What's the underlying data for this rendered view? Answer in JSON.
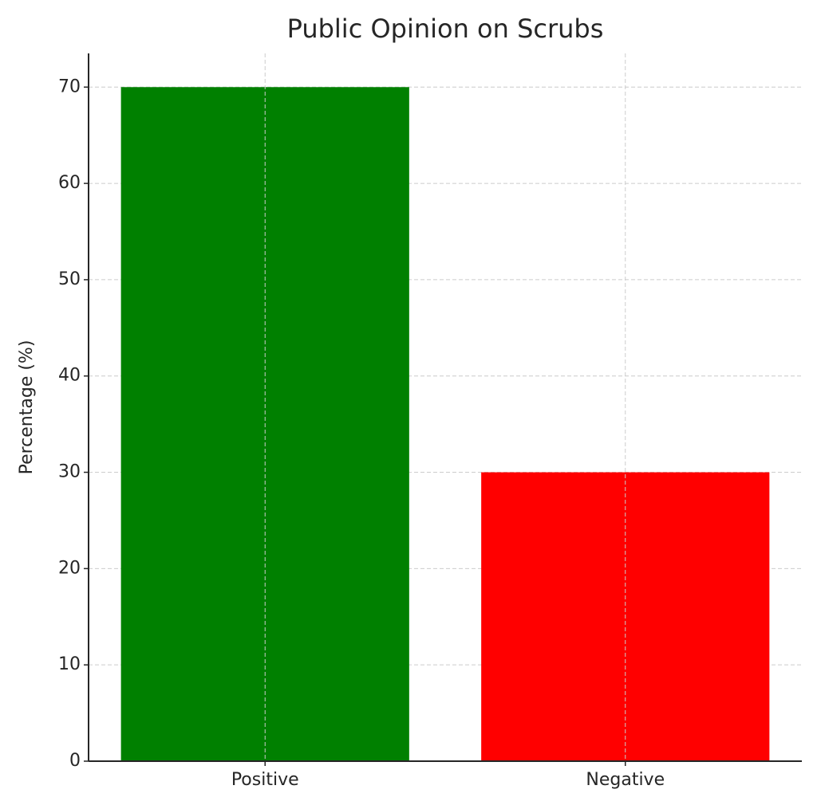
{
  "chart_data": {
    "type": "bar",
    "title": "Public Opinion on Scrubs",
    "ylabel": "Percentage (%)",
    "categories": [
      "Positive",
      "Negative"
    ],
    "values": [
      70,
      30
    ],
    "colors": [
      "#008000",
      "#ff0000"
    ],
    "ylim": [
      0,
      73.5
    ],
    "yticks": [
      0,
      10,
      20,
      30,
      40,
      50,
      60,
      70
    ],
    "grid": true
  }
}
